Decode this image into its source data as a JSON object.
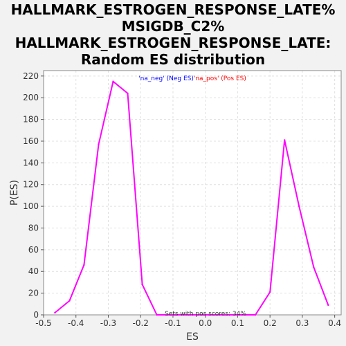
{
  "title_lines": [
    "HALLMARK_ESTROGEN_RESPONSE_LATE%",
    "MSIGDB_C2%",
    "HALLMARK_ESTROGEN_RESPONSE_LATE:",
    "Random ES distribution"
  ],
  "chart_data": {
    "type": "line",
    "title": "HALLMARK_ESTROGEN_RESPONSE_LATE% MSIGDB_C2% HALLMARK_ESTROGEN_RESPONSE_LATE: Random ES distribution",
    "xlabel": "ES",
    "ylabel": "P(ES)",
    "xlim": [
      -0.5,
      0.42
    ],
    "ylim": [
      0,
      225
    ],
    "xticks": [
      -0.5,
      -0.4,
      -0.3,
      -0.2,
      -0.1,
      0.0,
      0.1,
      0.2,
      0.3,
      0.4
    ],
    "xtick_labels": [
      "-0.5",
      "-0.4",
      "-0.3",
      "-0.2",
      "-0.1",
      "0.0",
      "0.1",
      "0.2",
      "0.3",
      "0.4"
    ],
    "yticks": [
      0,
      20,
      40,
      60,
      80,
      100,
      120,
      140,
      160,
      180,
      200,
      220
    ],
    "ytick_labels": [
      "0",
      "20",
      "40",
      "60",
      "80",
      "100",
      "120",
      "140",
      "160",
      "180",
      "200",
      "220"
    ],
    "grid": true,
    "legend": {
      "placement": "top-center",
      "entries": [
        {
          "label": "'na_neg' (Neg ES)",
          "color": "#0000ff"
        },
        {
          "label": "'na_pos' (Pos ES)",
          "color": "#ff0000"
        }
      ]
    },
    "annotation": "Sets with pos scores: 34%",
    "series": [
      {
        "color": "#ff00ff",
        "x": [
          -0.465,
          -0.42,
          -0.375,
          -0.33,
          -0.285,
          -0.24,
          -0.195,
          -0.15,
          0.155,
          0.2,
          0.245,
          0.29,
          0.335,
          0.38
        ],
        "y": [
          2,
          13,
          46,
          157,
          215,
          204,
          28,
          0,
          0,
          21,
          161,
          100,
          44,
          9
        ]
      }
    ]
  }
}
